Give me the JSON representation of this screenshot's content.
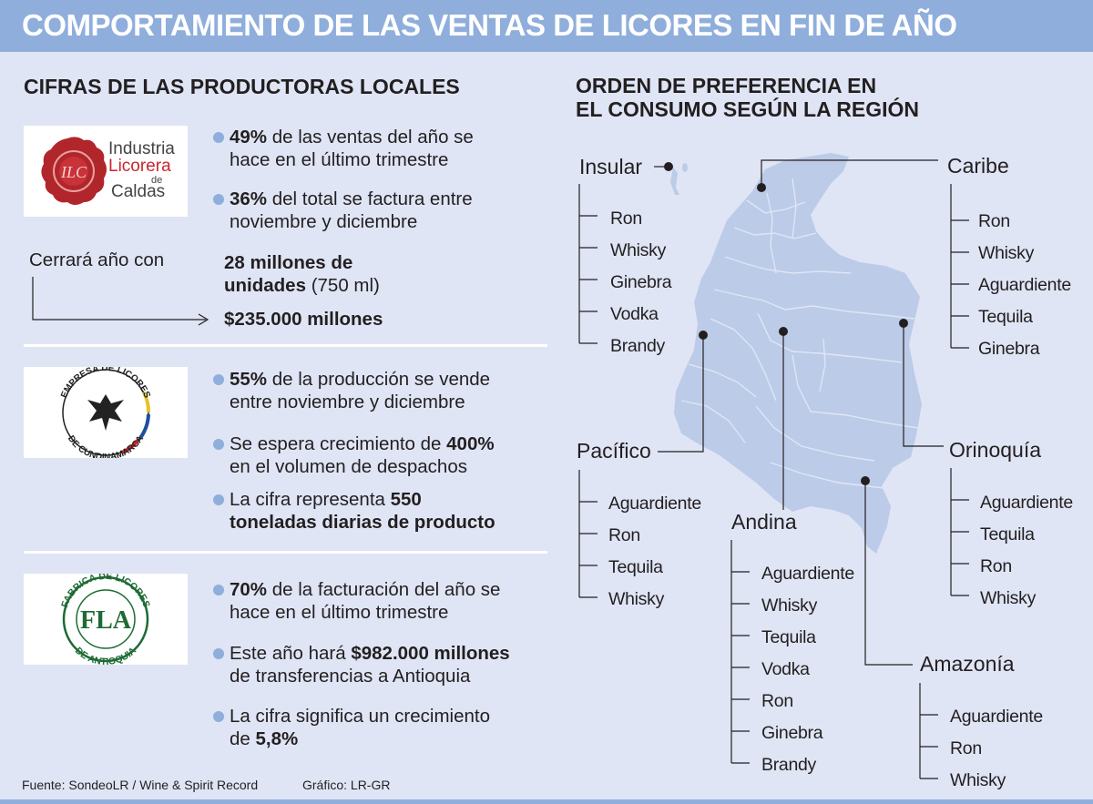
{
  "header": {
    "title": "COMPORTAMIENTO DE LAS VENTAS DE LICORES EN FIN DE AÑO"
  },
  "left": {
    "title": "CIFRAS DE LAS PRODUCTORAS LOCALES",
    "companies": [
      {
        "logo_text": [
          "Industria",
          "Licorera",
          "de",
          "Caldas"
        ],
        "logo_seal": "ILC",
        "bullets": [
          {
            "bold": "49%",
            "line1": " de las ventas del año se",
            "line2": "hace en el último trimestre"
          },
          {
            "bold": "36%",
            "line1": " del total se factura entre",
            "line2": "noviembre y diciembre"
          }
        ],
        "close_label": "Cerrará año con",
        "units_bold_1": "28 millones de",
        "units_bold_2": "unidades",
        "units_rest": " (750 ml)",
        "amount": "$235.000 millones"
      },
      {
        "logo_text": [
          "EMPRESA DE LICORES",
          "DE CUNDINAMARCA"
        ],
        "bullets": [
          {
            "bold": "55%",
            "line1": " de la producción se vende",
            "line2": "entre noviembre y diciembre"
          },
          {
            "pre": "Se espera crecimiento de ",
            "bold": "400%",
            "line2": "en el volumen de despachos"
          },
          {
            "pre": "La cifra representa ",
            "bold": "550",
            "line2bold": "toneladas diarias de producto"
          }
        ]
      },
      {
        "logo_text": [
          "FABRICA DE LICORES",
          "DE ANTIOQUIA",
          "FLA"
        ],
        "bullets": [
          {
            "bold": "70%",
            "line1": " de la facturación del año se",
            "line2": "hace en el último trimestre"
          },
          {
            "pre": "Este año hará ",
            "bold": "$982.000 millones",
            "line2": "de transferencias a Antioquia"
          },
          {
            "pre": "La cifra significa un crecimiento",
            "line2pre": "de ",
            "line2bold": "5,8%"
          }
        ]
      }
    ]
  },
  "right": {
    "title_line1": "ORDEN DE PREFERENCIA EN",
    "title_line2": "EL CONSUMO SEGÚN LA REGIÓN",
    "regions": {
      "insular": {
        "name": "Insular",
        "items": [
          "Ron",
          "Whisky",
          "Ginebra",
          "Vodka",
          "Brandy"
        ]
      },
      "caribe": {
        "name": "Caribe",
        "items": [
          "Ron",
          "Whisky",
          "Aguardiente",
          "Tequila",
          "Ginebra"
        ]
      },
      "pacifico": {
        "name": "Pacífico",
        "items": [
          "Aguardiente",
          "Ron",
          "Tequila",
          "Whisky"
        ]
      },
      "andina": {
        "name": "Andina",
        "items": [
          "Aguardiente",
          "Whisky",
          "Tequila",
          "Vodka",
          "Ron",
          "Ginebra",
          "Brandy"
        ]
      },
      "orinoquia": {
        "name": "Orinoquía",
        "items": [
          "Aguardiente",
          "Tequila",
          "Ron",
          "Whisky"
        ]
      },
      "amazonia": {
        "name": "Amazonía",
        "items": [
          "Aguardiente",
          "Ron",
          "Whisky"
        ]
      }
    }
  },
  "footer": {
    "source": "Fuente: SondeoLR / Wine & Spirit Record",
    "graphic": "Gráfico: LR-GR"
  },
  "colors": {
    "accent": "#8faedc",
    "background": "#dfe5f5",
    "map": "#bccbe8",
    "text": "#231f20"
  }
}
